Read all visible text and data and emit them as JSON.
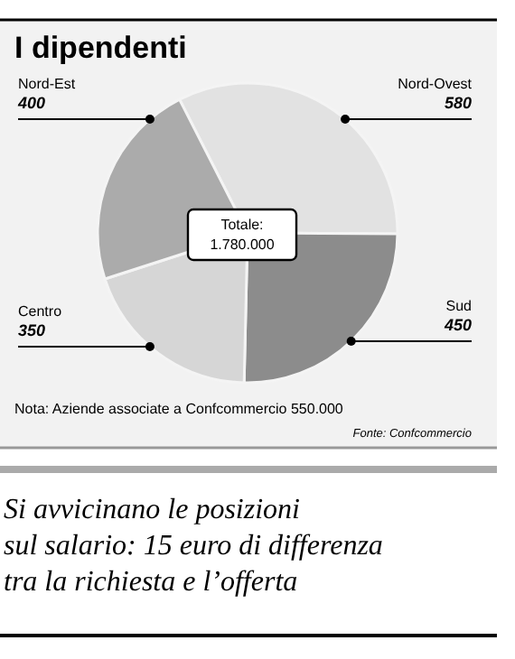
{
  "chart_data": {
    "type": "pie",
    "title": "I dipendenti",
    "categories": [
      "Nord-Ovest",
      "Sud",
      "Centro",
      "Nord-Est"
    ],
    "values": [
      580,
      450,
      350,
      400
    ],
    "colors": [
      "#e2e2e2",
      "#8c8c8c",
      "#d6d6d6",
      "#ababab"
    ],
    "data_labels": true,
    "annotations": [
      "Totale:\n1.780.000",
      "Nota: Aziende associate a Confcommercio 550.000",
      "Fonte: Confcommercio",
      "Si avvicinano le posizioni\nsul salario: 15 euro di differenza\ntra la richiesta e l’offerta"
    ]
  }
}
